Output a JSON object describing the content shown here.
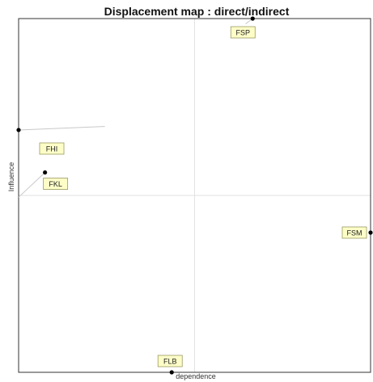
{
  "chart_data": {
    "type": "scatter",
    "title": "Displacement map : direct/indirect",
    "xlabel": "dependence",
    "ylabel": "Influence",
    "xlim": [
      0,
      100
    ],
    "ylim": [
      0,
      100
    ],
    "grid": "midlines",
    "colors": {
      "label_fill": "#fdfdc8",
      "label_border": "#9a9a60",
      "point": "#000000",
      "displacement_line": "#c8c8c8",
      "midline": "#e2e2e2"
    },
    "points": [
      {
        "label": "FSP",
        "x": 66.5,
        "y": 100,
        "from": [
          64.5,
          98.5
        ]
      },
      {
        "label": "FHI",
        "x": 0,
        "y": 68.5,
        "from": [
          24.5,
          69.5
        ]
      },
      {
        "label": "FKL",
        "x": 7.5,
        "y": 56.5,
        "from": [
          0,
          49.5
        ]
      },
      {
        "label": "FSM",
        "x": 100,
        "y": 39.5,
        "from": null
      },
      {
        "label": "FLB",
        "x": 43.5,
        "y": 0,
        "from": null
      }
    ]
  }
}
